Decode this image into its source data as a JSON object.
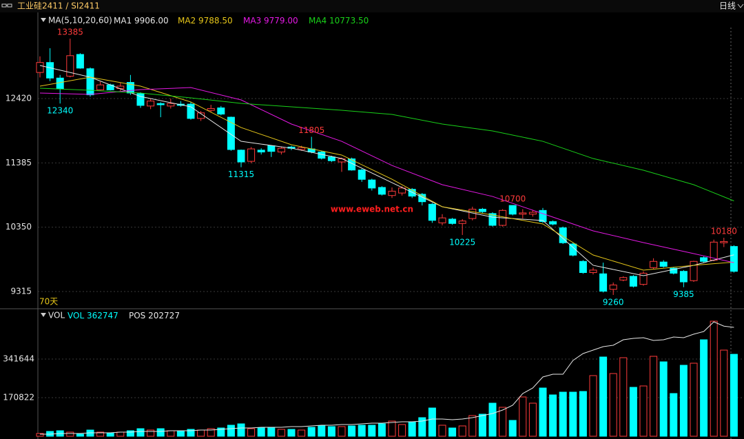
{
  "header": {
    "symbol": "工业硅2411 / SI2411",
    "period": "日线"
  },
  "watermark": "www.eweb.net.cn",
  "chart_data": [
    {
      "type": "candlestick",
      "legend_title": "MA(5,10,20,60)",
      "period_label": "70天",
      "up_color": "#ff3b3b",
      "down_color": "#00ffff",
      "ylim": [
        9049,
        13762
      ],
      "yticks": [
        9315,
        10350,
        11385,
        12420
      ],
      "grid": true,
      "open": [
        12840,
        13000,
        12750,
        12780,
        13130,
        12900,
        12560,
        12640,
        12580,
        12680,
        12500,
        12300,
        12340,
        12300,
        12330,
        12330,
        12100,
        12230,
        12270,
        12120,
        11590,
        11410,
        11590,
        11660,
        11560,
        11640,
        11600,
        11610,
        11560,
        11480,
        11400,
        11450,
        11270,
        11110,
        10990,
        10860,
        10900,
        10960,
        10880,
        10720,
        10420,
        10480,
        10410,
        10490,
        10640,
        10570,
        10380,
        10700,
        10560,
        10560,
        10620,
        10440,
        10340,
        10080,
        9800,
        9620,
        9600,
        9350,
        9500,
        9560,
        9430,
        9700,
        9790,
        9690,
        9640,
        9490,
        9860,
        9820,
        10100,
        10040
      ],
      "close": [
        13000,
        12750,
        12580,
        13110,
        12910,
        12480,
        12640,
        12560,
        12620,
        12510,
        12310,
        12380,
        12320,
        12340,
        12310,
        12100,
        12190,
        12260,
        12170,
        11600,
        11400,
        11610,
        11560,
        11570,
        11620,
        11620,
        11630,
        11560,
        11460,
        11420,
        11450,
        11270,
        11120,
        10980,
        10880,
        10930,
        10980,
        10850,
        10760,
        10460,
        10500,
        10410,
        10450,
        10640,
        10600,
        10380,
        10620,
        10560,
        10580,
        10590,
        10440,
        10400,
        10100,
        9900,
        9620,
        9660,
        9320,
        9420,
        9540,
        9400,
        9610,
        9800,
        9720,
        9610,
        9470,
        9800,
        9800,
        10110,
        10120,
        9640
      ],
      "high": [
        13100,
        13230,
        12800,
        13385,
        13150,
        12920,
        12690,
        12660,
        12680,
        12800,
        12520,
        12420,
        12360,
        12420,
        12380,
        12360,
        12220,
        12320,
        12300,
        12130,
        11600,
        11640,
        11620,
        11670,
        11650,
        11660,
        11660,
        11805,
        11580,
        11500,
        11470,
        11470,
        11290,
        11130,
        11010,
        10990,
        11010,
        10980,
        10900,
        10740,
        10560,
        10500,
        10480,
        10680,
        10660,
        10590,
        10640,
        10700,
        10640,
        10630,
        10660,
        10460,
        10360,
        10100,
        9820,
        9700,
        9780,
        9460,
        9560,
        9580,
        9640,
        9850,
        9820,
        9710,
        9660,
        9810,
        9880,
        10150,
        10180,
        10060
      ],
      "low": [
        12760,
        12700,
        12340,
        12760,
        12900,
        12450,
        12550,
        12550,
        12540,
        12480,
        12270,
        12250,
        12120,
        12260,
        12290,
        12080,
        12060,
        12200,
        12150,
        11580,
        11315,
        11380,
        11520,
        11480,
        11520,
        11590,
        11580,
        11540,
        11440,
        11400,
        11240,
        11260,
        11080,
        10940,
        10860,
        10820,
        10860,
        10820,
        10700,
        10420,
        10380,
        10390,
        10225,
        10460,
        10580,
        10360,
        10360,
        10540,
        10490,
        10520,
        10420,
        10380,
        10080,
        9880,
        9600,
        9590,
        9300,
        9260,
        9480,
        9380,
        9410,
        9680,
        9700,
        9590,
        9385,
        9470,
        9780,
        9800,
        10030,
        9620
      ],
      "high_labels": [
        3,
        27,
        47,
        68
      ],
      "low_labels": [
        2,
        20,
        42,
        57,
        64
      ],
      "series": [
        {
          "name": "MA1",
          "value_label": "9906.00",
          "color": "#e8e8e8",
          "x": [
            0,
            5,
            10,
            15,
            20,
            25,
            30,
            35,
            40,
            45,
            50,
            55,
            60,
            65,
            69
          ],
          "values": [
            12952,
            12764,
            12453,
            12287,
            11732,
            11621,
            11455,
            11067,
            10679,
            10512,
            10457,
            9737,
            9570,
            9737,
            9906
          ]
        },
        {
          "name": "MA2",
          "value_label": "9788.50",
          "color": "#e6c619",
          "x": [
            0,
            5,
            10,
            15,
            20,
            25,
            30,
            35,
            40,
            45,
            50,
            55,
            60,
            65,
            69
          ],
          "values": [
            12620,
            12764,
            12620,
            12365,
            11954,
            11677,
            11511,
            11122,
            10679,
            10546,
            10402,
            9903,
            9659,
            9737,
            9788.5
          ]
        },
        {
          "name": "MA3",
          "value_label": "9779.00",
          "color": "#e619e6",
          "x": [
            0,
            5,
            10,
            15,
            20,
            25,
            30,
            35,
            40,
            45,
            50,
            55,
            60,
            65,
            69
          ],
          "values": [
            12509,
            12487,
            12564,
            12597,
            12398,
            12010,
            11732,
            11344,
            11034,
            10845,
            10568,
            10291,
            10102,
            9925,
            9779
          ]
        },
        {
          "name": "MA4",
          "value_label": "10773.50",
          "color": "#19d219",
          "x": [
            0,
            5,
            10,
            15,
            20,
            25,
            30,
            35,
            40,
            45,
            50,
            55,
            60,
            65,
            69
          ],
          "values": [
            12586,
            12553,
            12509,
            12431,
            12342,
            12287,
            12231,
            12165,
            12010,
            11899,
            11732,
            11455,
            11267,
            11034,
            10773.5
          ]
        }
      ]
    },
    {
      "type": "bar",
      "title": "VOL",
      "ylim": [
        0,
        558200
      ],
      "yticks": [
        170822,
        341644
      ],
      "y2lim": [
        0,
        234789
      ],
      "grid": true,
      "series": [
        {
          "name": "VOL",
          "color": "#00ffff",
          "values": [
            12200,
            21350,
            24400,
            18300,
            9150,
            27450,
            18300,
            15250,
            18300,
            24400,
            33550,
            27450,
            33550,
            24400,
            24400,
            30500,
            27450,
            33550,
            36600,
            48800,
            54900,
            33550,
            36600,
            36600,
            30500,
            30500,
            27450,
            39650,
            45750,
            42700,
            42700,
            45750,
            48800,
            48800,
            54900,
            67100,
            51850,
            64050,
            82350,
            125050,
            48800,
            36600,
            45750,
            91500,
            97600,
            146400,
            128100,
            70150,
            173850,
            146400,
            213500,
            183000,
            195200,
            195200,
            198250,
            268400,
            350750,
            277550,
            347700,
            216550,
            222650,
            353800,
            329400,
            189100,
            314150,
            323300,
            427000,
            509350,
            381250,
            362747
          ]
        },
        {
          "name": "POS",
          "color": "#e8e8e8",
          "axis": "y2",
          "values": [
            3849,
            3849,
            5132,
            5132,
            5132,
            6415,
            6415,
            6415,
            7698,
            7698,
            8981,
            8981,
            8981,
            10264,
            10264,
            10264,
            11547,
            11547,
            12830,
            14113,
            15396,
            15396,
            16679,
            16679,
            16679,
            17962,
            17962,
            19245,
            20528,
            20528,
            21811,
            21811,
            23094,
            24377,
            24377,
            25660,
            26943,
            26943,
            28226,
            32075,
            32075,
            30792,
            32075,
            34641,
            38490,
            42339,
            48754,
            57735,
            79545,
            89809,
            110338,
            115470,
            115470,
            141130,
            153960,
            160375,
            166790,
            169356,
            179620,
            182186,
            183469,
            178337,
            179620,
            184752,
            183469,
            190000,
            195000,
            213000,
            205000,
            202727
          ]
        }
      ]
    }
  ]
}
